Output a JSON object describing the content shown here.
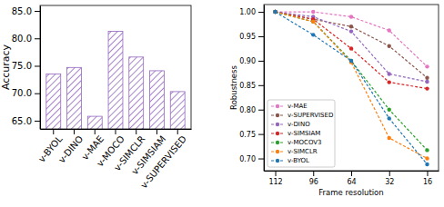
{
  "chart_data": [
    {
      "type": "bar",
      "y_label": "Accuracy",
      "categories": [
        "v-BYOL",
        "v-DINO",
        "v-MAE",
        "v-MOCO",
        "v-SIMCLR",
        "v-SIMSIAM",
        "v-SUPERVISED"
      ],
      "values": [
        73.5,
        74.7,
        65.8,
        81.3,
        76.6,
        74.1,
        70.3
      ],
      "color": "#9467bd",
      "ylim": [
        63.5,
        86
      ],
      "yticks": [
        {
          "value": 65,
          "label": "65.0"
        },
        {
          "value": 70,
          "label": "70.0"
        },
        {
          "value": 75,
          "label": "75.0"
        },
        {
          "value": 80,
          "label": "80.0"
        },
        {
          "value": 85,
          "label": "85.0"
        }
      ]
    },
    {
      "type": "line",
      "x_label": "Frame resolution",
      "y_label": "Robustness",
      "categories": [
        "112",
        "96",
        "64",
        "32",
        "16"
      ],
      "series": [
        {
          "name": "v-MAE",
          "color": "#e377c2",
          "values": [
            1.0,
            1.0,
            0.99,
            0.962,
            0.888
          ]
        },
        {
          "name": "v-SUPERVISED",
          "color": "#8c564b",
          "values": [
            1.0,
            0.985,
            0.97,
            0.93,
            0.865
          ]
        },
        {
          "name": "v-DINO",
          "color": "#9467bd",
          "values": [
            1.0,
            0.99,
            0.96,
            0.873,
            0.857
          ]
        },
        {
          "name": "v-SIMSIAM",
          "color": "#d62728",
          "values": [
            1.0,
            0.985,
            0.925,
            0.856,
            0.843
          ]
        },
        {
          "name": "v-MOCOV3",
          "color": "#2ca02c",
          "values": [
            1.0,
            0.98,
            0.9,
            0.8,
            0.717
          ]
        },
        {
          "name": "v-SIMCLR",
          "color": "#ff7f0e",
          "values": [
            1.0,
            0.98,
            0.897,
            0.742,
            0.7
          ]
        },
        {
          "name": "v-BYOL",
          "color": "#1f77b4",
          "values": [
            1.0,
            0.953,
            0.9,
            0.782,
            0.688
          ]
        }
      ],
      "ylim": [
        0.675,
        1.015
      ],
      "yticks": [
        {
          "value": 0.7,
          "label": "0.70"
        },
        {
          "value": 0.75,
          "label": "0.75"
        },
        {
          "value": 0.8,
          "label": "0.80"
        },
        {
          "value": 0.85,
          "label": "0.85"
        },
        {
          "value": 0.9,
          "label": "0.90"
        },
        {
          "value": 0.95,
          "label": "0.95"
        },
        {
          "value": 1.0,
          "label": "1.00"
        }
      ],
      "legend": "lower left",
      "marker": "o",
      "line_style": "dashed"
    }
  ]
}
